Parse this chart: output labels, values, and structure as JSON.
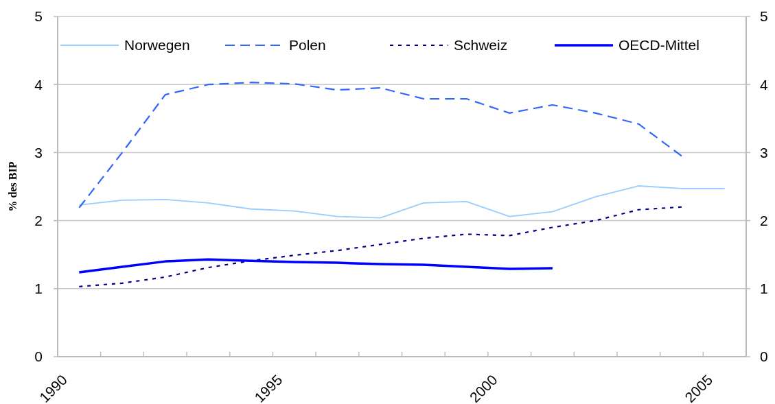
{
  "chart_data": {
    "type": "line",
    "ylabel": "% des BIP",
    "x": [
      1990.5,
      1991.5,
      1992.5,
      1993.5,
      1994.5,
      1995.5,
      1996.5,
      1997.5,
      1998.5,
      1999.5,
      2000.5,
      2001.5,
      2002.5,
      2003.5,
      2004.5,
      2005.5
    ],
    "series": [
      {
        "name": "Norwegen",
        "color": "#99ccff",
        "line_style": "solid",
        "values": [
          2.23,
          2.3,
          2.31,
          2.26,
          2.17,
          2.14,
          2.06,
          2.04,
          2.26,
          2.28,
          2.06,
          2.13,
          2.35,
          2.51,
          2.47,
          2.47
        ]
      },
      {
        "name": "Polen",
        "color": "#3366ff",
        "line_style": "dashed",
        "values": [
          2.19,
          3.0,
          3.85,
          4.0,
          4.03,
          4.01,
          3.92,
          3.95,
          3.79,
          3.79,
          3.58,
          3.7,
          3.58,
          3.42,
          2.95,
          null
        ]
      },
      {
        "name": "Schweiz",
        "color": "#000080",
        "line_style": "dotted",
        "values": [
          1.03,
          1.08,
          1.17,
          1.31,
          1.41,
          1.49,
          1.56,
          1.65,
          1.74,
          1.8,
          1.78,
          1.9,
          2.0,
          2.16,
          2.2,
          null
        ]
      },
      {
        "name": "OECD-Mittel",
        "color": "#0000ff",
        "line_style": "solid",
        "values": [
          1.24,
          1.32,
          1.4,
          1.43,
          1.41,
          1.39,
          1.38,
          1.36,
          1.35,
          1.32,
          1.29,
          1.3,
          null,
          null,
          null,
          null
        ]
      }
    ],
    "xlim": [
      1990,
      2006
    ],
    "xticks": [
      1990,
      {
        "value": 1991,
        "label": null
      },
      {
        "value": 1992,
        "label": null
      },
      {
        "value": 1993,
        "label": null
      },
      {
        "value": 1994,
        "label": null
      },
      1995,
      {
        "value": 1996,
        "label": null
      },
      {
        "value": 1997,
        "label": null
      },
      {
        "value": 1998,
        "label": null
      },
      {
        "value": 1999,
        "label": null
      },
      2000,
      {
        "value": 2001,
        "label": null
      },
      {
        "value": 2002,
        "label": null
      },
      {
        "value": 2003,
        "label": null
      },
      {
        "value": 2004,
        "label": null
      },
      2005,
      {
        "value": 2006,
        "label": null
      }
    ],
    "ylim": [
      0,
      5
    ],
    "yticks": [
      0,
      1,
      2,
      3,
      4,
      5
    ],
    "y2lim": [
      0,
      5
    ],
    "y2ticks": [
      0,
      1,
      2,
      3,
      4,
      5
    ],
    "grid": "y",
    "legend": "top",
    "marker": "none"
  }
}
